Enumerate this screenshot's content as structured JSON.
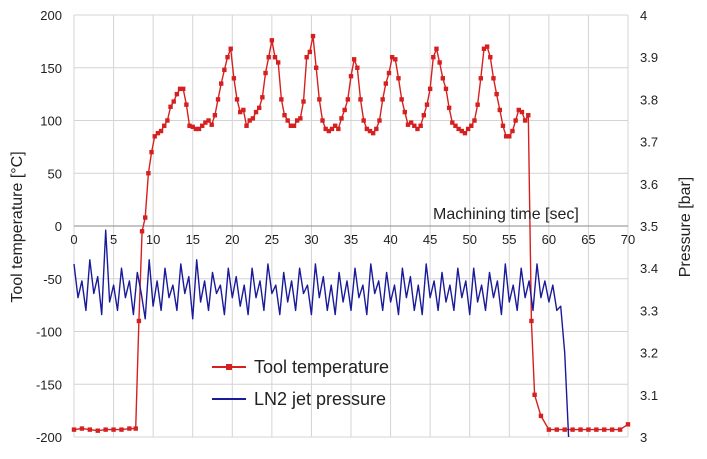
{
  "chart_data": {
    "type": "line",
    "xlabel": "Machining time [sec]",
    "ylabel_left": "Tool temperature [°C]",
    "ylabel_right": "Pressure [bar]",
    "xlim": [
      0,
      70
    ],
    "ylim_left": [
      -200,
      200
    ],
    "ylim_right": [
      3.0,
      4.0
    ],
    "x_ticks": [
      "0",
      "5",
      "10",
      "15",
      "20",
      "25",
      "30",
      "35",
      "40",
      "45",
      "50",
      "55",
      "60",
      "65",
      "70"
    ],
    "y_left_ticks": [
      "200",
      "150",
      "100",
      "50",
      "0",
      "-50",
      "-100",
      "-150",
      "-200"
    ],
    "y_right_ticks": [
      "4",
      "3.9",
      "3.8",
      "3.7",
      "3.6",
      "3.5",
      "3.4",
      "3.3",
      "3.2",
      "3.1",
      "3"
    ],
    "grid": true,
    "legend_position": "bottom-center",
    "series": [
      {
        "name": "Tool temperature",
        "axis": "left",
        "color": "#d62020",
        "marker": "square",
        "x": [
          0,
          1,
          2,
          3,
          4,
          5,
          6,
          7,
          7.8,
          8.2,
          8.6,
          9.0,
          9.4,
          9.8,
          10.2,
          10.6,
          11.0,
          11.4,
          11.8,
          12.2,
          12.6,
          13.0,
          13.4,
          13.8,
          14.2,
          14.6,
          15.0,
          15.4,
          15.8,
          16.2,
          16.6,
          17.0,
          17.4,
          17.8,
          18.2,
          18.6,
          19.0,
          19.4,
          19.8,
          20.2,
          20.6,
          21.0,
          21.4,
          21.8,
          22.2,
          22.6,
          23.0,
          23.4,
          23.8,
          24.2,
          24.6,
          25.0,
          25.4,
          25.8,
          26.2,
          26.6,
          27.0,
          27.4,
          27.8,
          28.2,
          28.6,
          29.0,
          29.4,
          29.8,
          30.2,
          30.6,
          31.0,
          31.4,
          31.8,
          32.2,
          32.6,
          33.0,
          33.4,
          33.8,
          34.2,
          34.6,
          35.0,
          35.4,
          35.8,
          36.2,
          36.6,
          37.0,
          37.4,
          37.8,
          38.2,
          38.6,
          39.0,
          39.4,
          39.8,
          40.2,
          40.6,
          41.0,
          41.4,
          41.8,
          42.2,
          42.6,
          43.0,
          43.4,
          43.8,
          44.2,
          44.6,
          45.0,
          45.4,
          45.8,
          46.2,
          46.6,
          47.0,
          47.4,
          47.8,
          48.2,
          48.6,
          49.0,
          49.4,
          49.8,
          50.2,
          50.6,
          51.0,
          51.4,
          51.8,
          52.2,
          52.6,
          53.0,
          53.4,
          53.8,
          54.2,
          54.6,
          55.0,
          55.4,
          55.8,
          56.2,
          56.6,
          57.0,
          57.4,
          57.8,
          58.2,
          59,
          60,
          61,
          62,
          63,
          64,
          65,
          66,
          67,
          68,
          69,
          70
        ],
        "values": [
          -193,
          -192,
          -193,
          -194,
          -193,
          -193,
          -193,
          -192,
          -192,
          -90,
          -5,
          8,
          50,
          70,
          85,
          88,
          90,
          95,
          100,
          113,
          118,
          125,
          130,
          130,
          115,
          95,
          94,
          92,
          92,
          95,
          98,
          100,
          96,
          105,
          120,
          135,
          148,
          160,
          168,
          140,
          120,
          108,
          110,
          95,
          100,
          102,
          108,
          112,
          122,
          145,
          160,
          176,
          160,
          155,
          120,
          105,
          100,
          95,
          95,
          100,
          102,
          118,
          160,
          165,
          180,
          150,
          120,
          100,
          92,
          90,
          92,
          95,
          92,
          102,
          110,
          120,
          142,
          158,
          150,
          120,
          100,
          92,
          90,
          88,
          92,
          100,
          120,
          135,
          145,
          160,
          158,
          140,
          120,
          108,
          96,
          98,
          95,
          92,
          95,
          105,
          115,
          130,
          160,
          168,
          155,
          140,
          130,
          112,
          98,
          95,
          92,
          90,
          88,
          92,
          95,
          100,
          115,
          140,
          168,
          170,
          160,
          140,
          125,
          110,
          95,
          85,
          85,
          90,
          100,
          110,
          108,
          100,
          105,
          -90,
          -160,
          -180,
          -193,
          -193,
          -193,
          -193,
          -193,
          -193,
          -193,
          -193,
          -193,
          -193,
          -188
        ]
      },
      {
        "name": "LN2 jet pressure",
        "axis": "right",
        "color": "#1a1a9a",
        "marker": "none",
        "x": [
          0,
          0.5,
          1,
          1.5,
          2,
          2.5,
          3,
          3.5,
          4,
          4.5,
          5,
          5.5,
          6,
          6.5,
          7,
          7.5,
          8,
          8.5,
          9,
          9.5,
          10,
          10.5,
          11,
          11.5,
          12,
          12.5,
          13,
          13.5,
          14,
          14.5,
          15,
          15.5,
          16,
          16.5,
          17,
          17.5,
          18,
          18.5,
          19,
          19.5,
          20,
          20.5,
          21,
          21.5,
          22,
          22.5,
          23,
          23.5,
          24,
          24.5,
          25,
          25.5,
          26,
          26.5,
          27,
          27.5,
          28,
          28.5,
          29,
          29.5,
          30,
          30.5,
          31,
          31.5,
          32,
          32.5,
          33,
          33.5,
          34,
          34.5,
          35,
          35.5,
          36,
          36.5,
          37,
          37.5,
          38,
          38.5,
          39,
          39.5,
          40,
          40.5,
          41,
          41.5,
          42,
          42.5,
          43,
          43.5,
          44,
          44.5,
          45,
          45.5,
          46,
          46.5,
          47,
          47.5,
          48,
          48.5,
          49,
          49.5,
          50,
          50.5,
          51,
          51.5,
          52,
          52.5,
          53,
          53.5,
          54,
          54.5,
          55,
          55.5,
          56,
          56.5,
          57,
          57.5,
          58,
          58.5,
          59,
          59.5,
          60,
          60.5,
          61,
          61.5,
          62,
          62.5
        ],
        "values": [
          3.41,
          3.33,
          3.37,
          3.3,
          3.42,
          3.34,
          3.38,
          3.29,
          3.49,
          3.32,
          3.36,
          3.3,
          3.4,
          3.33,
          3.37,
          3.29,
          3.39,
          3.34,
          3.28,
          3.42,
          3.31,
          3.37,
          3.3,
          3.4,
          3.33,
          3.36,
          3.3,
          3.41,
          3.34,
          3.38,
          3.28,
          3.42,
          3.32,
          3.37,
          3.3,
          3.39,
          3.34,
          3.36,
          3.29,
          3.4,
          3.33,
          3.38,
          3.31,
          3.36,
          3.29,
          3.4,
          3.33,
          3.37,
          3.3,
          3.41,
          3.34,
          3.36,
          3.29,
          3.39,
          3.32,
          3.37,
          3.3,
          3.4,
          3.34,
          3.36,
          3.29,
          3.41,
          3.33,
          3.38,
          3.3,
          3.36,
          3.29,
          3.39,
          3.32,
          3.37,
          3.3,
          3.4,
          3.33,
          3.36,
          3.29,
          3.41,
          3.34,
          3.37,
          3.3,
          3.39,
          3.32,
          3.36,
          3.29,
          3.4,
          3.33,
          3.38,
          3.3,
          3.36,
          3.29,
          3.41,
          3.33,
          3.37,
          3.3,
          3.39,
          3.32,
          3.36,
          3.3,
          3.4,
          3.33,
          3.37,
          3.29,
          3.4,
          3.32,
          3.36,
          3.3,
          3.39,
          3.33,
          3.37,
          3.29,
          3.41,
          3.32,
          3.36,
          3.3,
          3.4,
          3.33,
          3.37,
          3.3,
          3.41,
          3.33,
          3.37,
          3.32,
          3.36,
          3.3,
          3.31,
          3.2,
          3.0
        ]
      }
    ]
  }
}
